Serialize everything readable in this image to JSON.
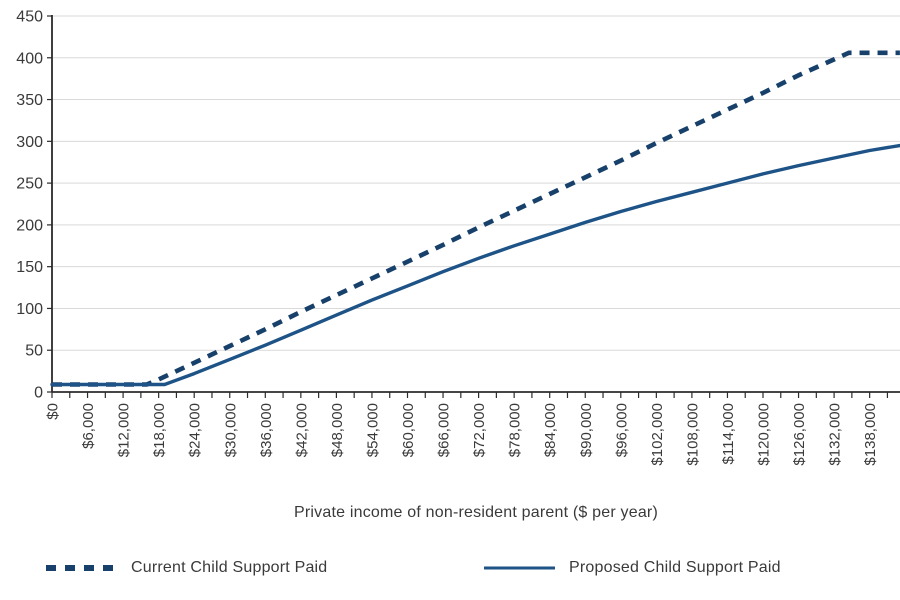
{
  "chart_data": {
    "type": "line",
    "title": "",
    "xlabel": "Private income of non-resident parent ($ per year)",
    "ylabel": "",
    "ylim": [
      0,
      450
    ],
    "y_tick_step": 50,
    "x_minor_tick_step": 3000,
    "x_label_step": 6000,
    "x_max_visible": 143100,
    "grid": "horizontal-light",
    "legend_position": "bottom",
    "x_tick_labels": [
      "$0",
      "$6,000",
      "$12,000",
      "$18,000",
      "$24,000",
      "$30,000",
      "$36,000",
      "$42,000",
      "$48,000",
      "$54,000",
      "$60,000",
      "$66,000",
      "$72,000",
      "$78,000",
      "$84,000",
      "$90,000",
      "$96,000",
      "$102,000",
      "$108,000",
      "$114,000",
      "$120,000",
      "$126,000",
      "$132,000",
      "$138,000"
    ],
    "series": [
      {
        "name": "Current Child Support Paid",
        "style": "dashed",
        "color": "#17406b",
        "points": [
          [
            0,
            9
          ],
          [
            16000,
            9
          ],
          [
            18000,
            15
          ],
          [
            24000,
            35
          ],
          [
            30000,
            55
          ],
          [
            36000,
            75
          ],
          [
            42000,
            96
          ],
          [
            48000,
            116
          ],
          [
            54000,
            136
          ],
          [
            60000,
            156
          ],
          [
            66000,
            176
          ],
          [
            72000,
            197
          ],
          [
            78000,
            217
          ],
          [
            84000,
            237
          ],
          [
            90000,
            257
          ],
          [
            96000,
            277
          ],
          [
            102000,
            298
          ],
          [
            108000,
            318
          ],
          [
            114000,
            338
          ],
          [
            120000,
            358
          ],
          [
            126000,
            379
          ],
          [
            132000,
            398
          ],
          [
            134500,
            406
          ],
          [
            143100,
            406
          ]
        ]
      },
      {
        "name": "Proposed Child Support Paid",
        "style": "solid",
        "color": "#1d5386",
        "points": [
          [
            0,
            9
          ],
          [
            19000,
            9
          ],
          [
            24000,
            22
          ],
          [
            30000,
            39
          ],
          [
            36000,
            56
          ],
          [
            42000,
            74
          ],
          [
            48000,
            92
          ],
          [
            54000,
            110
          ],
          [
            60000,
            127
          ],
          [
            66000,
            144
          ],
          [
            72000,
            160
          ],
          [
            78000,
            175
          ],
          [
            84000,
            189
          ],
          [
            90000,
            203
          ],
          [
            96000,
            216
          ],
          [
            102000,
            228
          ],
          [
            108000,
            239
          ],
          [
            114000,
            250
          ],
          [
            120000,
            261
          ],
          [
            126000,
            271
          ],
          [
            132000,
            280
          ],
          [
            138000,
            289
          ],
          [
            143100,
            295
          ]
        ]
      }
    ]
  },
  "legend": {
    "items": [
      {
        "label": "Current Child Support Paid"
      },
      {
        "label": "Proposed Child Support Paid"
      }
    ]
  },
  "colors": {
    "gridline": "#d9d9d9",
    "axis": "#2b2b2b",
    "text": "#3a3a3a"
  }
}
